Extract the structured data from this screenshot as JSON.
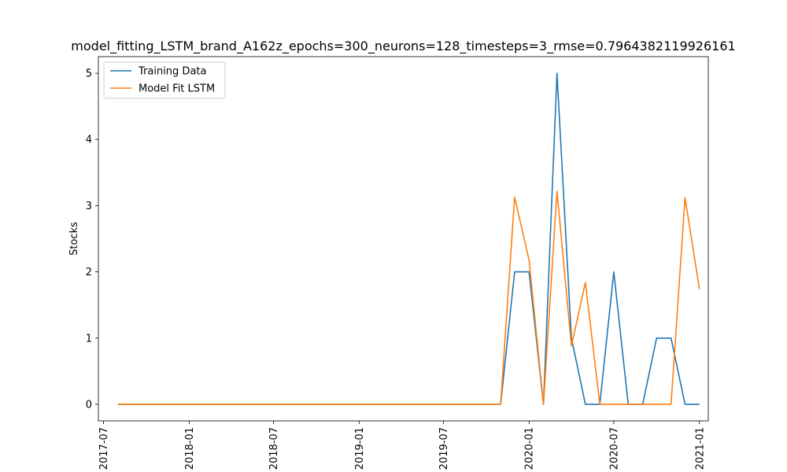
{
  "chart_data": {
    "type": "line",
    "title": "model_fitting_LSTM_brand_A162z_epochs=300_neurons=128_timesteps=3_rmse=0.7964382119926161",
    "xlabel": "",
    "ylabel": "Stocks",
    "x_axis_type": "date",
    "xlim": [
      "2017-06-20",
      "2021-01-20"
    ],
    "ylim": [
      -0.25,
      5.25
    ],
    "x_ticks": [
      "2017-07",
      "2018-01",
      "2018-07",
      "2019-01",
      "2019-07",
      "2020-01",
      "2020-07",
      "2021-01"
    ],
    "y_ticks": [
      0,
      1,
      2,
      3,
      4,
      5
    ],
    "grid": false,
    "legend_position": "upper-left",
    "x": [
      "2017-08-01",
      "2017-09-01",
      "2017-10-01",
      "2017-11-01",
      "2017-12-01",
      "2018-01-01",
      "2018-02-01",
      "2018-03-01",
      "2018-04-01",
      "2018-05-01",
      "2018-06-01",
      "2018-07-01",
      "2018-08-01",
      "2018-09-01",
      "2018-10-01",
      "2018-11-01",
      "2018-12-01",
      "2019-01-01",
      "2019-02-01",
      "2019-03-01",
      "2019-04-01",
      "2019-05-01",
      "2019-06-01",
      "2019-07-01",
      "2019-08-01",
      "2019-09-01",
      "2019-10-01",
      "2019-11-01",
      "2019-12-01",
      "2020-01-01",
      "2020-02-01",
      "2020-03-01",
      "2020-04-01",
      "2020-05-01",
      "2020-06-01",
      "2020-07-01",
      "2020-08-01",
      "2020-09-01",
      "2020-10-01",
      "2020-11-01",
      "2020-12-01",
      "2021-01-01"
    ],
    "series": [
      {
        "name": "Training Data",
        "color": "#1f77b4",
        "values": [
          0,
          0,
          0,
          0,
          0,
          0,
          0,
          0,
          0,
          0,
          0,
          0,
          0,
          0,
          0,
          0,
          0,
          0,
          0,
          0,
          0,
          0,
          0,
          0,
          0,
          0,
          0,
          0,
          2,
          2,
          0,
          5,
          1,
          0,
          0,
          2,
          0,
          0,
          1,
          1,
          0,
          0
        ]
      },
      {
        "name": "Model Fit LSTM",
        "color": "#ff7f0e",
        "values": [
          0,
          0,
          0,
          0,
          0,
          0,
          0,
          0,
          0,
          0,
          0,
          0,
          0,
          0,
          0,
          0,
          0,
          0,
          0,
          0,
          0,
          0,
          0,
          0,
          0,
          0,
          0,
          0,
          3.13,
          2.18,
          0,
          3.22,
          0.88,
          1.84,
          0,
          0,
          0,
          0,
          0,
          0,
          3.12,
          1.74
        ]
      }
    ]
  }
}
